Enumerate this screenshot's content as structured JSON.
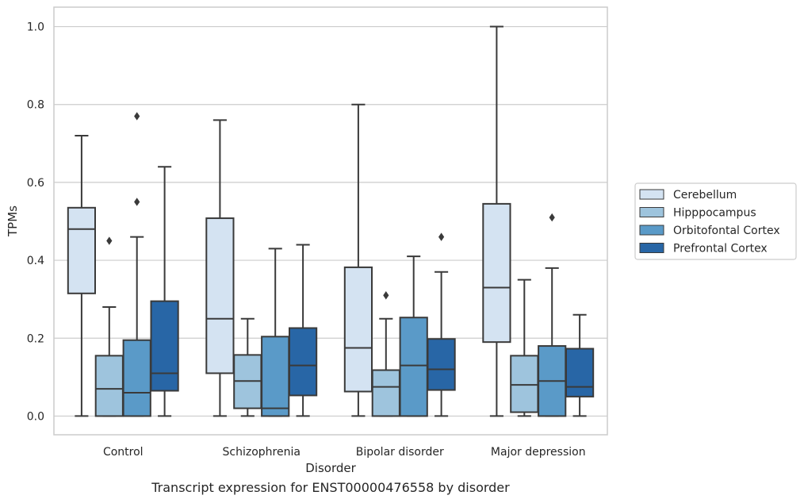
{
  "caption": "Transcript expression for ENST00000476558 by disorder",
  "chart_data": {
    "type": "boxplot",
    "xlabel": "Disorder",
    "ylabel": "TPMs",
    "ylim": [
      -0.048,
      1.05
    ],
    "yticks": [
      "0.0",
      "0.2",
      "0.4",
      "0.6",
      "0.8",
      "1.0"
    ],
    "grid": "horizontal",
    "legend_position": "right",
    "categories": [
      "Control",
      "Schizophrenia",
      "Bipolar disorder",
      "Major depression"
    ],
    "series": [
      {
        "name": "Cerebellum",
        "color": "#d4e3f2",
        "boxes": [
          {
            "whisker_low": 0.0,
            "q1": 0.315,
            "median": 0.48,
            "q3": 0.535,
            "whisker_high": 0.72,
            "outliers": []
          },
          {
            "whisker_low": 0.0,
            "q1": 0.11,
            "median": 0.25,
            "q3": 0.508,
            "whisker_high": 0.76,
            "outliers": []
          },
          {
            "whisker_low": 0.0,
            "q1": 0.063,
            "median": 0.175,
            "q3": 0.382,
            "whisker_high": 0.8,
            "outliers": []
          },
          {
            "whisker_low": 0.0,
            "q1": 0.19,
            "median": 0.33,
            "q3": 0.545,
            "whisker_high": 1.0,
            "outliers": []
          }
        ]
      },
      {
        "name": "Hipppocampus",
        "color": "#9ec4dd",
        "boxes": [
          {
            "whisker_low": 0.0,
            "q1": 0.0,
            "median": 0.07,
            "q3": 0.155,
            "whisker_high": 0.28,
            "outliers": [
              0.45
            ]
          },
          {
            "whisker_low": 0.0,
            "q1": 0.02,
            "median": 0.09,
            "q3": 0.157,
            "whisker_high": 0.25,
            "outliers": []
          },
          {
            "whisker_low": 0.0,
            "q1": 0.0,
            "median": 0.075,
            "q3": 0.118,
            "whisker_high": 0.25,
            "outliers": [
              0.31
            ]
          },
          {
            "whisker_low": 0.0,
            "q1": 0.01,
            "median": 0.08,
            "q3": 0.155,
            "whisker_high": 0.35,
            "outliers": []
          }
        ]
      },
      {
        "name": "Orbitofontal Cortex",
        "color": "#5a9ac8",
        "boxes": [
          {
            "whisker_low": 0.0,
            "q1": 0.0,
            "median": 0.06,
            "q3": 0.195,
            "whisker_high": 0.46,
            "outliers": [
              0.55,
              0.77
            ]
          },
          {
            "whisker_low": 0.0,
            "q1": 0.0,
            "median": 0.02,
            "q3": 0.204,
            "whisker_high": 0.43,
            "outliers": []
          },
          {
            "whisker_low": 0.0,
            "q1": 0.0,
            "median": 0.13,
            "q3": 0.253,
            "whisker_high": 0.41,
            "outliers": []
          },
          {
            "whisker_low": 0.0,
            "q1": 0.0,
            "median": 0.09,
            "q3": 0.18,
            "whisker_high": 0.38,
            "outliers": [
              0.51
            ]
          }
        ]
      },
      {
        "name": "Prefrontal Cortex",
        "color": "#2866a6",
        "boxes": [
          {
            "whisker_low": 0.0,
            "q1": 0.065,
            "median": 0.11,
            "q3": 0.295,
            "whisker_high": 0.64,
            "outliers": []
          },
          {
            "whisker_low": 0.0,
            "q1": 0.053,
            "median": 0.13,
            "q3": 0.226,
            "whisker_high": 0.44,
            "outliers": []
          },
          {
            "whisker_low": 0.0,
            "q1": 0.067,
            "median": 0.12,
            "q3": 0.198,
            "whisker_high": 0.37,
            "outliers": [
              0.46
            ]
          },
          {
            "whisker_low": 0.0,
            "q1": 0.05,
            "median": 0.075,
            "q3": 0.173,
            "whisker_high": 0.26,
            "outliers": []
          }
        ]
      }
    ]
  }
}
